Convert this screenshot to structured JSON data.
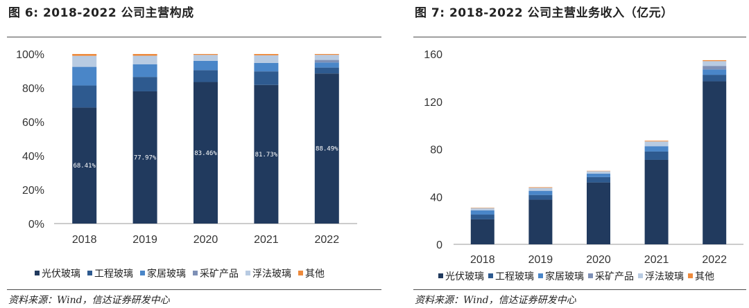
{
  "colors": {
    "光伏玻璃": "#213a5e",
    "工程玻璃": "#2e5a8f",
    "家居玻璃": "#4a86c8",
    "采矿产品": "#7e90b6",
    "浮法玻璃": "#b8cbe2",
    "其他": "#ee8a3c"
  },
  "left": {
    "title": "图 6:  2018-2022 公司主营构成",
    "source": "资料来源：Wind，信达证券研发中心"
  },
  "right": {
    "title": "图 7:  2018-2022 公司主营业务收入（亿元）",
    "source": "资料来源：Wind，信达证券研发中心"
  },
  "chart_data": [
    {
      "type": "bar",
      "stacked": true,
      "normalized": true,
      "categories": [
        "2018",
        "2019",
        "2020",
        "2021",
        "2022"
      ],
      "ylim": [
        0,
        100
      ],
      "yticks": [
        "0%",
        "20%",
        "40%",
        "60%",
        "80%",
        "100%"
      ],
      "series": [
        {
          "name": "光伏玻璃",
          "values": [
            68.41,
            77.97,
            83.46,
            81.73,
            88.49
          ]
        },
        {
          "name": "工程玻璃",
          "values": [
            13.0,
            8.5,
            7.0,
            8.0,
            3.5
          ]
        },
        {
          "name": "家居玻璃",
          "values": [
            11.0,
            7.5,
            5.5,
            5.0,
            3.0
          ]
        },
        {
          "name": "采矿产品",
          "values": [
            0.0,
            0.0,
            0.0,
            0.0,
            1.5
          ]
        },
        {
          "name": "浮法玻璃",
          "values": [
            6.5,
            5.0,
            3.5,
            4.5,
            3.0
          ]
        },
        {
          "name": "其他",
          "values": [
            1.09,
            1.03,
            0.54,
            0.77,
            0.51
          ]
        }
      ],
      "data_labels": [
        "68.41%",
        "77.97%",
        "83.46%",
        "81.73%",
        "88.49%"
      ],
      "legend": [
        "光伏玻璃",
        "工程玻璃",
        "家居玻璃",
        "采矿产品",
        "浮法玻璃",
        "其他"
      ],
      "legend_position": "bottom"
    },
    {
      "type": "bar",
      "stacked": true,
      "categories": [
        "2018",
        "2019",
        "2020",
        "2021",
        "2022"
      ],
      "ylim": [
        0,
        160
      ],
      "yticks": [
        "0",
        "40",
        "80",
        "120",
        "160"
      ],
      "series": [
        {
          "name": "光伏玻璃",
          "values": [
            21.0,
            37.5,
            52.0,
            71.0,
            137.0
          ]
        },
        {
          "name": "工程玻璃",
          "values": [
            4.0,
            4.0,
            4.5,
            7.0,
            5.5
          ]
        },
        {
          "name": "家居玻璃",
          "values": [
            3.5,
            3.5,
            3.0,
            4.5,
            4.5
          ]
        },
        {
          "name": "采矿产品",
          "values": [
            0.0,
            0.0,
            0.0,
            0.0,
            3.0
          ]
        },
        {
          "name": "浮法玻璃",
          "values": [
            2.0,
            2.5,
            2.0,
            4.0,
            4.0
          ]
        },
        {
          "name": "其他",
          "values": [
            0.3,
            0.5,
            0.3,
            0.6,
            0.8
          ]
        }
      ],
      "legend": [
        "光伏玻璃",
        "工程玻璃",
        "家居玻璃",
        "采矿产品",
        "浮法玻璃",
        "其他"
      ],
      "legend_position": "bottom"
    }
  ]
}
